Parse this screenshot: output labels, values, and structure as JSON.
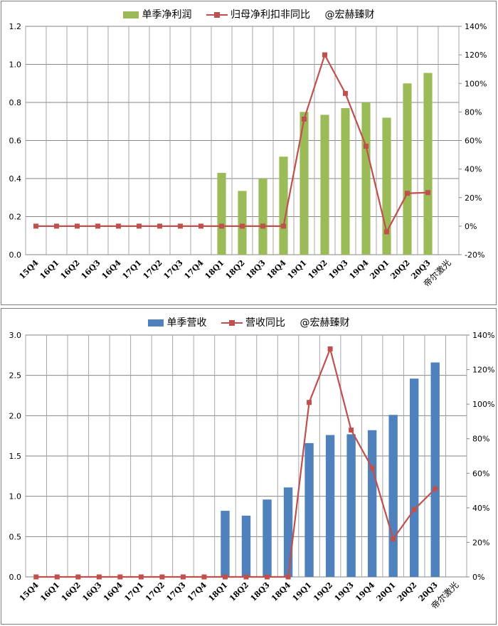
{
  "chart_data": [
    {
      "type": "bar",
      "title": "",
      "legend": {
        "placement": "top",
        "watermark": "@宏赫臻财"
      },
      "categories": [
        "15Q4",
        "16Q1",
        "16Q2",
        "16Q3",
        "16Q4",
        "17Q1",
        "17Q2",
        "17Q3",
        "17Q4",
        "18Q1",
        "18Q2",
        "18Q3",
        "18Q4",
        "19Q1",
        "19Q2",
        "19Q3",
        "19Q4",
        "20Q1",
        "20Q2",
        "20Q3"
      ],
      "extra_label": "帝尔激光",
      "y_left": {
        "min": 0,
        "max": 1.2,
        "ticks": [
          "0.0",
          "0.2",
          "0.4",
          "0.6",
          "0.8",
          "1.0",
          "1.2"
        ]
      },
      "y_right": {
        "min": -20,
        "max": 140,
        "ticks": [
          "-20%",
          "0%",
          "20%",
          "40%",
          "60%",
          "80%",
          "100%",
          "120%",
          "140%"
        ]
      },
      "grid": true,
      "series": [
        {
          "name": "单季净利润",
          "kind": "bar",
          "axis": "left",
          "color": "#9bbb59",
          "values": [
            null,
            null,
            null,
            null,
            null,
            null,
            null,
            null,
            null,
            0.43,
            0.335,
            0.4,
            0.515,
            0.75,
            0.735,
            0.77,
            0.8,
            0.72,
            0.9,
            0.955
          ]
        },
        {
          "name": "归母净利扣非同比",
          "kind": "line",
          "axis": "right",
          "color": "#c0504d",
          "values": [
            0,
            0,
            0,
            0,
            0,
            0,
            0,
            0,
            0,
            0,
            0,
            0,
            0,
            75,
            120,
            93,
            56,
            -4,
            23,
            23.5
          ]
        }
      ]
    },
    {
      "type": "bar",
      "title": "",
      "legend": {
        "placement": "top",
        "watermark": "@宏赫臻财"
      },
      "categories": [
        "15Q4",
        "16Q1",
        "16Q2",
        "16Q3",
        "16Q4",
        "17Q1",
        "17Q2",
        "17Q3",
        "17Q4",
        "18Q1",
        "18Q2",
        "18Q3",
        "18Q4",
        "19Q1",
        "19Q2",
        "19Q3",
        "19Q4",
        "20Q1",
        "20Q2",
        "20Q3"
      ],
      "extra_label": "帝尔激光",
      "y_left": {
        "min": 0,
        "max": 3.0,
        "ticks": [
          "0.0",
          "0.5",
          "1.0",
          "1.5",
          "2.0",
          "2.5",
          "3.0"
        ]
      },
      "y_right": {
        "min": 0,
        "max": 140,
        "ticks": [
          "0%",
          "20%",
          "40%",
          "60%",
          "80%",
          "100%",
          "120%",
          "140%"
        ]
      },
      "grid": true,
      "series": [
        {
          "name": "单季营收",
          "kind": "bar",
          "axis": "left",
          "color": "#4f81bd",
          "values": [
            null,
            null,
            null,
            null,
            null,
            null,
            null,
            null,
            null,
            0.82,
            0.76,
            0.96,
            1.11,
            1.66,
            1.76,
            1.77,
            1.82,
            2.01,
            2.46,
            2.66
          ]
        },
        {
          "name": "营收同比",
          "kind": "line",
          "axis": "right",
          "color": "#c0504d",
          "values": [
            0,
            0,
            0,
            0,
            0,
            0,
            0,
            0,
            0,
            0,
            0,
            0,
            0,
            101,
            132,
            85,
            63,
            22,
            39,
            51
          ]
        }
      ]
    }
  ]
}
